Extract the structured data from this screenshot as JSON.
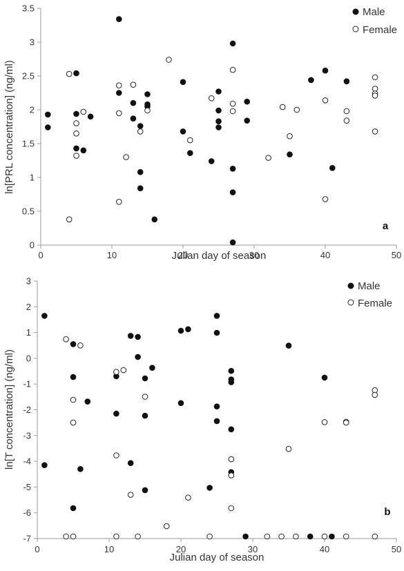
{
  "chart_data": [
    {
      "type": "scatter",
      "panel_label": "a",
      "xlabel": "Julian day of season",
      "ylabel": "ln[PRL concentration] (ng/ml)",
      "xlim": [
        0,
        50
      ],
      "ylim": [
        0,
        3.5
      ],
      "x_ticks": [
        "0",
        "10",
        "20",
        "30",
        "40",
        "50"
      ],
      "y_ticks": [
        "0",
        "0.5",
        "1",
        "1.5",
        "2",
        "2.5",
        "3",
        "3.5"
      ],
      "legend_position": "top-right",
      "grid": false,
      "series": [
        {
          "name": "Male",
          "marker": "filled-circle",
          "points": [
            [
              1,
              1.93
            ],
            [
              1,
              1.74
            ],
            [
              5,
              2.54
            ],
            [
              5,
              1.94
            ],
            [
              5,
              1.43
            ],
            [
              6,
              1.4
            ],
            [
              7,
              1.9
            ],
            [
              11,
              3.34
            ],
            [
              11,
              2.25
            ],
            [
              13,
              2.1
            ],
            [
              13,
              1.87
            ],
            [
              14,
              1.76
            ],
            [
              14,
              1.08
            ],
            [
              14,
              0.84
            ],
            [
              15,
              2.23
            ],
            [
              15,
              2.08
            ],
            [
              15,
              2.05
            ],
            [
              16,
              0.38
            ],
            [
              20,
              2.41
            ],
            [
              20,
              1.68
            ],
            [
              21,
              1.36
            ],
            [
              24,
              1.24
            ],
            [
              25,
              2.27
            ],
            [
              25,
              1.99
            ],
            [
              25,
              1.83
            ],
            [
              25,
              1.74
            ],
            [
              27,
              2.98
            ],
            [
              27,
              1.13
            ],
            [
              27,
              0.78
            ],
            [
              27,
              0.04
            ],
            [
              29,
              2.12
            ],
            [
              29,
              1.84
            ],
            [
              35,
              1.34
            ],
            [
              38,
              2.44
            ],
            [
              40,
              2.58
            ],
            [
              41,
              1.14
            ],
            [
              43,
              2.42
            ]
          ]
        },
        {
          "name": "Female",
          "marker": "open-circle",
          "points": [
            [
              4,
              2.53
            ],
            [
              4,
              0.38
            ],
            [
              5,
              1.8
            ],
            [
              5,
              1.65
            ],
            [
              5,
              1.32
            ],
            [
              6,
              1.97
            ],
            [
              11,
              2.36
            ],
            [
              11,
              1.95
            ],
            [
              11,
              0.64
            ],
            [
              12,
              1.3
            ],
            [
              13,
              2.37
            ],
            [
              14,
              1.68
            ],
            [
              15,
              1.99
            ],
            [
              18,
              2.74
            ],
            [
              21,
              1.55
            ],
            [
              24,
              2.17
            ],
            [
              27,
              2.59
            ],
            [
              27,
              2.09
            ],
            [
              27,
              1.98
            ],
            [
              32,
              1.29
            ],
            [
              34,
              2.04
            ],
            [
              35,
              1.61
            ],
            [
              36,
              2.0
            ],
            [
              40,
              2.14
            ],
            [
              40,
              0.68
            ],
            [
              43,
              1.98
            ],
            [
              43,
              1.84
            ],
            [
              47,
              2.48
            ],
            [
              47,
              2.31
            ],
            [
              47,
              2.24
            ],
            [
              47,
              2.21
            ],
            [
              47,
              1.68
            ]
          ]
        }
      ]
    },
    {
      "type": "scatter",
      "panel_label": "b",
      "xlabel": "Julian day of season",
      "ylabel": "ln[T concentration] (ng/ml)",
      "xlim": [
        0,
        50
      ],
      "ylim": [
        -7,
        3
      ],
      "x_ticks": [
        "0",
        "10",
        "20",
        "30",
        "40",
        "50"
      ],
      "y_ticks": [
        "-7",
        "-6",
        "-5",
        "-4",
        "-3",
        "-2",
        "-1",
        "0",
        "1",
        "2",
        "3"
      ],
      "legend_position": "top-right",
      "grid": false,
      "series": [
        {
          "name": "Male",
          "marker": "filled-circle",
          "points": [
            [
              1,
              1.65
            ],
            [
              1,
              -4.15
            ],
            [
              5,
              0.55
            ],
            [
              5,
              -0.73
            ],
            [
              5,
              -5.82
            ],
            [
              6,
              -4.3
            ],
            [
              7,
              -1.68
            ],
            [
              11,
              -0.7
            ],
            [
              11,
              -2.15
            ],
            [
              13,
              0.87
            ],
            [
              13,
              -4.07
            ],
            [
              14,
              0.83
            ],
            [
              14,
              0.05
            ],
            [
              15,
              -0.78
            ],
            [
              15,
              -2.23
            ],
            [
              15,
              -5.12
            ],
            [
              16,
              -0.37
            ],
            [
              20,
              1.07
            ],
            [
              20,
              -1.74
            ],
            [
              21,
              1.13
            ],
            [
              24,
              -5.03
            ],
            [
              25,
              1.65
            ],
            [
              25,
              0.99
            ],
            [
              25,
              -1.87
            ],
            [
              25,
              -2.44
            ],
            [
              27,
              -0.49
            ],
            [
              27,
              -0.82
            ],
            [
              27,
              -0.93
            ],
            [
              27,
              -2.76
            ],
            [
              27,
              -4.42
            ],
            [
              29,
              -6.92
            ],
            [
              35,
              0.49
            ],
            [
              38,
              -6.92
            ],
            [
              40,
              -0.75
            ],
            [
              41,
              -6.92
            ]
          ]
        },
        {
          "name": "Female",
          "marker": "open-circle",
          "points": [
            [
              4,
              0.74
            ],
            [
              4,
              -6.92
            ],
            [
              5,
              -1.61
            ],
            [
              5,
              -2.5
            ],
            [
              5,
              -6.92
            ],
            [
              6,
              0.5
            ],
            [
              11,
              -0.53
            ],
            [
              11,
              -3.77
            ],
            [
              11,
              -6.92
            ],
            [
              12,
              -0.46
            ],
            [
              13,
              -5.3
            ],
            [
              14,
              -6.92
            ],
            [
              15,
              -1.49
            ],
            [
              18,
              -6.52
            ],
            [
              21,
              -5.41
            ],
            [
              24,
              -6.92
            ],
            [
              27,
              -3.92
            ],
            [
              27,
              -4.55
            ],
            [
              27,
              -5.82
            ],
            [
              32,
              -6.92
            ],
            [
              34,
              -6.92
            ],
            [
              35,
              -3.52
            ],
            [
              36,
              -6.92
            ],
            [
              40,
              -2.48
            ],
            [
              40,
              -6.92
            ],
            [
              43,
              -2.47
            ],
            [
              43,
              -2.5
            ],
            [
              43,
              -6.92
            ],
            [
              47,
              -1.24
            ],
            [
              47,
              -1.42
            ],
            [
              47,
              -6.92
            ]
          ]
        }
      ]
    }
  ]
}
